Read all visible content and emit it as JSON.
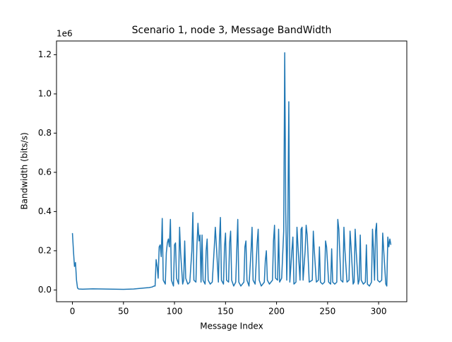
{
  "chart_data": {
    "type": "line",
    "title": "Scenario 1, node 3, Message BandWidth",
    "x_label": "Message Index",
    "y_label": "Bandwidth (bits/s)",
    "y_offset_label": "1e6",
    "xlim": [
      -15.6,
      327.6
    ],
    "ylim": [
      -0.06,
      1.27
    ],
    "xticks": [
      0,
      50,
      100,
      150,
      200,
      250,
      300
    ],
    "yticks": [
      {
        "value": 0,
        "label": "0.0"
      },
      {
        "value": 0.2,
        "label": "0.2"
      },
      {
        "value": 0.4,
        "label": "0.4"
      },
      {
        "value": 0.6,
        "label": "0.6"
      },
      {
        "value": 0.8,
        "label": "0.8"
      },
      {
        "value": 1.0,
        "label": "1.0"
      },
      {
        "value": 1.2,
        "label": "1.2"
      }
    ],
    "series": [
      {
        "color": "#1f77b4",
        "x": [
          0,
          1,
          2,
          3,
          4,
          5,
          6,
          10,
          20,
          30,
          40,
          50,
          60,
          70,
          75,
          78,
          80,
          81,
          82,
          83,
          84,
          85,
          86,
          87,
          88,
          89,
          91,
          92,
          93,
          94,
          95,
          96,
          97,
          99,
          100,
          101,
          102,
          104,
          105,
          106,
          108,
          109,
          110,
          111,
          113,
          115,
          117,
          118,
          119,
          121,
          122,
          123,
          124,
          125,
          126,
          127,
          128,
          130,
          131,
          132,
          133,
          135,
          137,
          139,
          140,
          141,
          143,
          144,
          145,
          146,
          148,
          149,
          150,
          151,
          153,
          154,
          155,
          156,
          158,
          160,
          161,
          162,
          163,
          165,
          168,
          169,
          170,
          171,
          173,
          175,
          176,
          177,
          179,
          181,
          182,
          183,
          185,
          188,
          189,
          190,
          191,
          193,
          196,
          197,
          198,
          199,
          201,
          202,
          203,
          205,
          207,
          208,
          209,
          210,
          211,
          212,
          213,
          215,
          216,
          217,
          219,
          220,
          221,
          223,
          224,
          225,
          226,
          228,
          229,
          230,
          232,
          235,
          236,
          237,
          239,
          241,
          242,
          243,
          245,
          247,
          248,
          249,
          251,
          253,
          254,
          255,
          257,
          259,
          260,
          261,
          263,
          265,
          266,
          267,
          269,
          271,
          272,
          273,
          275,
          276,
          277,
          278,
          280,
          281,
          282,
          283,
          285,
          287,
          288,
          289,
          291,
          293,
          294,
          295,
          296,
          297,
          298,
          299,
          301,
          303,
          304,
          305,
          307,
          308,
          309,
          310,
          311,
          312
        ],
        "values": [
          0.29,
          0.2,
          0.12,
          0.14,
          0.05,
          0.01,
          0.005,
          0.004,
          0.006,
          0.005,
          0.004,
          0.003,
          0.005,
          0.01,
          0.012,
          0.015,
          0.02,
          0.02,
          0.155,
          0.12,
          0.06,
          0.22,
          0.23,
          0.17,
          0.365,
          0.05,
          0.03,
          0.19,
          0.24,
          0.26,
          0.22,
          0.36,
          0.05,
          0.02,
          0.23,
          0.24,
          0.06,
          0.03,
          0.32,
          0.19,
          0.03,
          0.05,
          0.25,
          0.06,
          0.03,
          0.04,
          0.2,
          0.395,
          0.05,
          0.04,
          0.23,
          0.34,
          0.25,
          0.28,
          0.04,
          0.28,
          0.05,
          0.03,
          0.2,
          0.26,
          0.05,
          0.03,
          0.04,
          0.22,
          0.32,
          0.23,
          0.04,
          0.25,
          0.37,
          0.05,
          0.03,
          0.22,
          0.29,
          0.05,
          0.04,
          0.24,
          0.3,
          0.05,
          0.02,
          0.04,
          0.2,
          0.36,
          0.04,
          0.02,
          0.04,
          0.22,
          0.25,
          0.05,
          0.02,
          0.2,
          0.32,
          0.05,
          0.03,
          0.24,
          0.31,
          0.05,
          0.02,
          0.04,
          0.15,
          0.2,
          0.05,
          0.03,
          0.05,
          0.25,
          0.33,
          0.06,
          0.05,
          0.31,
          0.04,
          0.06,
          0.3,
          1.21,
          0.4,
          0.05,
          0.3,
          0.96,
          0.04,
          0.2,
          0.27,
          0.03,
          0.04,
          0.32,
          0.22,
          0.05,
          0.31,
          0.32,
          0.05,
          0.2,
          0.33,
          0.28,
          0.04,
          0.05,
          0.3,
          0.2,
          0.04,
          0.05,
          0.22,
          0.04,
          0.03,
          0.04,
          0.25,
          0.22,
          0.04,
          0.03,
          0.21,
          0.04,
          0.03,
          0.04,
          0.36,
          0.31,
          0.05,
          0.04,
          0.32,
          0.2,
          0.04,
          0.05,
          0.3,
          0.22,
          0.03,
          0.04,
          0.31,
          0.2,
          0.03,
          0.05,
          0.28,
          0.05,
          0.03,
          0.04,
          0.23,
          0.03,
          0.02,
          0.04,
          0.31,
          0.2,
          0.05,
          0.3,
          0.34,
          0.05,
          0.04,
          0.05,
          0.29,
          0.2,
          0.03,
          0.02,
          0.27,
          0.22,
          0.26,
          0.23
        ]
      }
    ]
  }
}
